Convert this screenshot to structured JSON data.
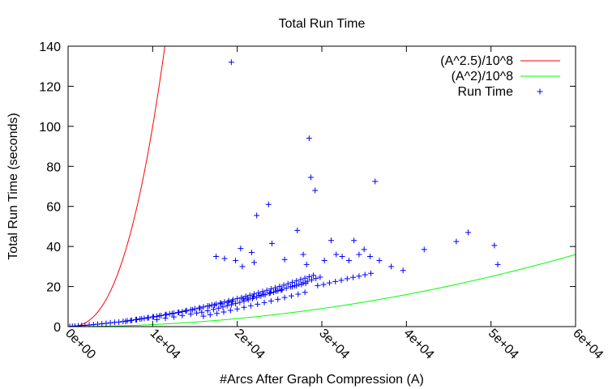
{
  "chart_data": {
    "type": "scatter",
    "title": "Total Run Time",
    "xlabel": "#Arcs After Graph Compression (A)",
    "ylabel": "Total Run Time (seconds)",
    "xlim": [
      0,
      60000
    ],
    "ylim": [
      0,
      140
    ],
    "x_ticks": [
      0,
      10000,
      20000,
      30000,
      40000,
      50000,
      60000
    ],
    "x_tick_labels": [
      "0e+00",
      "1e+04",
      "2e+04",
      "3e+04",
      "4e+04",
      "5e+04",
      "6e+04"
    ],
    "y_ticks": [
      0,
      20,
      40,
      60,
      80,
      100,
      120,
      140
    ],
    "y_tick_labels": [
      "0",
      "20",
      "40",
      "60",
      "80",
      "100",
      "120",
      "140"
    ],
    "legend_position": "top-right",
    "grid": false,
    "series": [
      {
        "name": "(A^2.5)/10^8",
        "kind": "curve",
        "exponent": 2.5,
        "color": "#ff0000"
      },
      {
        "name": "(A^2)/10^8",
        "kind": "curve",
        "exponent": 2.0,
        "color": "#00ff00"
      },
      {
        "name": "Run Time",
        "kind": "points",
        "marker": "+",
        "color": "#0000ff",
        "x": [
          200,
          500,
          800,
          1200,
          1600,
          2000,
          2500,
          3000,
          3500,
          4000,
          4500,
          5000,
          5500,
          6000,
          6500,
          7000,
          7500,
          8000,
          8500,
          9000,
          9500,
          10000,
          10500,
          11000,
          11500,
          12000,
          12500,
          13000,
          13500,
          14000,
          14500,
          15000,
          15500,
          16000,
          16500,
          17000,
          17500,
          18000,
          18500,
          19000,
          19500,
          20000,
          20500,
          21000,
          21500,
          22000,
          22500,
          23000,
          23500,
          24000,
          24500,
          25000,
          25500,
          26000,
          26500,
          27000,
          27500,
          28000,
          28500,
          29000,
          10500,
          11500,
          12500,
          13500,
          14500,
          15200,
          15800,
          16500,
          17200,
          17800,
          18300,
          18800,
          19300,
          19800,
          20300,
          20800,
          21300,
          21800,
          22300,
          22800,
          23300,
          23800,
          24300,
          24800,
          25300,
          25800,
          26300,
          26800,
          27300,
          27800,
          28300,
          28800,
          29300,
          29800,
          16000,
          16800,
          17600,
          18400,
          19200,
          20000,
          20800,
          21600,
          22400,
          23200,
          24000,
          24800,
          25600,
          26400,
          27200,
          28000,
          19300,
          28500,
          28700,
          29200,
          36300,
          23700,
          22300,
          21700,
          24100,
          20400,
          17500,
          18500,
          19800,
          20600,
          22000,
          25600,
          27100,
          27800,
          28200,
          30300,
          31100,
          31700,
          32400,
          33200,
          33800,
          34400,
          35000,
          35700,
          36800,
          38200,
          39600,
          42100,
          45900,
          47300,
          50400,
          50800,
          29500,
          30200,
          30900,
          31600,
          32300,
          33000,
          33700,
          34400,
          35100,
          35800,
          26500,
          27000,
          27600,
          28100,
          25200,
          24600,
          23900,
          23100,
          22600,
          21900,
          21200,
          20700,
          19400,
          18900,
          18100,
          17300,
          16700,
          15600,
          14700,
          13900,
          13100,
          12300,
          11600,
          10800,
          10100,
          9400,
          8700,
          8100,
          7400,
          6800
        ],
        "y": [
          0.1,
          0.2,
          0.3,
          0.4,
          0.5,
          0.6,
          0.8,
          1.0,
          1.2,
          1.4,
          1.6,
          1.9,
          2.1,
          2.3,
          2.6,
          2.9,
          3.2,
          3.5,
          3.8,
          4.1,
          4.4,
          4.8,
          5.1,
          5.5,
          5.9,
          6.3,
          6.7,
          7.1,
          7.5,
          8.0,
          8.4,
          8.9,
          9.3,
          9.8,
          10.3,
          10.8,
          11.3,
          11.8,
          12.3,
          12.9,
          13.4,
          14.0,
          14.5,
          15.1,
          15.7,
          16.3,
          16.9,
          17.5,
          18.1,
          18.8,
          19.4,
          20.1,
          20.7,
          21.4,
          22.1,
          22.8,
          23.5,
          24.2,
          24.9,
          25.6,
          3.5,
          4.2,
          4.8,
          5.5,
          6.2,
          6.8,
          7.2,
          7.9,
          8.6,
          9.2,
          9.8,
          10.4,
          10.9,
          11.5,
          12.1,
          12.8,
          13.4,
          14.0,
          14.6,
          15.3,
          15.9,
          16.6,
          17.2,
          17.9,
          18.5,
          19.2,
          19.9,
          20.5,
          21.2,
          21.9,
          22.6,
          23.3,
          24.0,
          24.7,
          5.2,
          5.9,
          6.6,
          7.3,
          8.1,
          8.8,
          9.6,
          10.4,
          11.2,
          12.0,
          12.8,
          13.6,
          14.5,
          15.3,
          16.2,
          17.1,
          132.0,
          94.0,
          74.5,
          68.0,
          72.5,
          61.0,
          55.5,
          37.0,
          41.5,
          39.0,
          35.0,
          34.0,
          33.0,
          30.0,
          32.0,
          33.5,
          48.0,
          36.0,
          31.0,
          33.0,
          43.0,
          36.0,
          35.0,
          33.0,
          43.0,
          36.0,
          38.5,
          35.0,
          33.0,
          30.0,
          28.0,
          38.5,
          42.5,
          47.0,
          40.5,
          31.0,
          20.5,
          21.0,
          21.8,
          22.5,
          23.1,
          23.9,
          24.6,
          25.2,
          25.9,
          26.6,
          20.0,
          20.4,
          21.0,
          21.6,
          18.2,
          17.7,
          16.9,
          16.1,
          15.6,
          14.9,
          14.2,
          13.8,
          12.6,
          12.1,
          11.4,
          10.7,
          10.2,
          9.2,
          8.4,
          7.8,
          7.1,
          6.5,
          6.0,
          5.4,
          4.9,
          4.4,
          3.9,
          3.5,
          3.0,
          2.6
        ]
      }
    ]
  }
}
